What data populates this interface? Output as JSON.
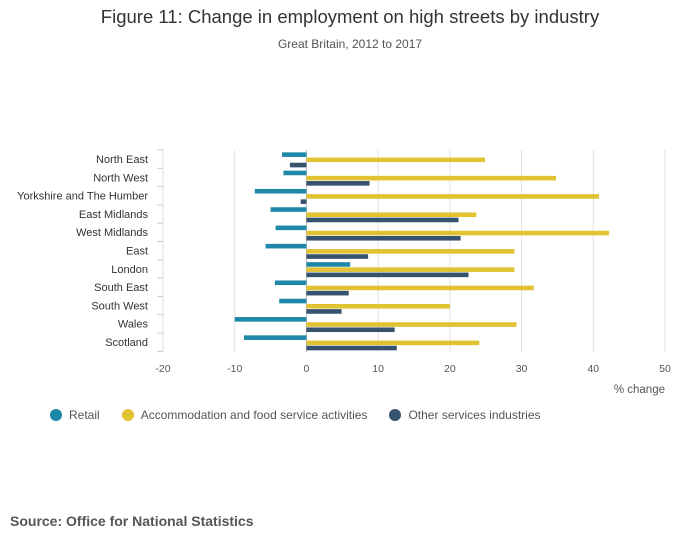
{
  "title": "Figure 11: Change in employment on high streets by industry",
  "subtitle": "Great Britain, 2012 to 2017",
  "source": "Source: Office for National Statistics",
  "colors": {
    "retail": "#1f87a8",
    "accommodation": "#e0c232",
    "other": "#35526e",
    "grid": "#e2e2e2",
    "zero": "#bbbbbb"
  },
  "chart_data": {
    "type": "bar",
    "orientation": "horizontal",
    "categories": [
      "North East",
      "North West",
      "Yorkshire and The Humber",
      "East Midlands",
      "West Midlands",
      "East",
      "London",
      "South East",
      "South West",
      "Wales",
      "Scotland"
    ],
    "series": [
      {
        "name": "Retail",
        "color": "#1f87a8",
        "values": [
          -3.4,
          -3.2,
          -7.2,
          -5.0,
          -4.3,
          -5.7,
          6.1,
          -4.4,
          -3.8,
          -10.0,
          -8.7
        ]
      },
      {
        "name": "Accommodation and food service activities",
        "color": "#e0c232",
        "values": [
          24.9,
          34.8,
          40.8,
          23.7,
          42.2,
          29.0,
          29.0,
          31.7,
          20.0,
          29.3,
          24.1
        ]
      },
      {
        "name": "Other services industries",
        "color": "#35526e",
        "values": [
          -2.3,
          8.8,
          -0.8,
          21.2,
          21.5,
          8.6,
          22.6,
          5.9,
          4.9,
          12.3,
          12.6
        ]
      }
    ],
    "xlim": [
      -20,
      50
    ],
    "xticks": [
      -20,
      -10,
      0,
      10,
      20,
      30,
      40,
      50
    ],
    "xlabel": "% change",
    "ylabel": "",
    "grid": true,
    "legend_position": "bottom"
  }
}
